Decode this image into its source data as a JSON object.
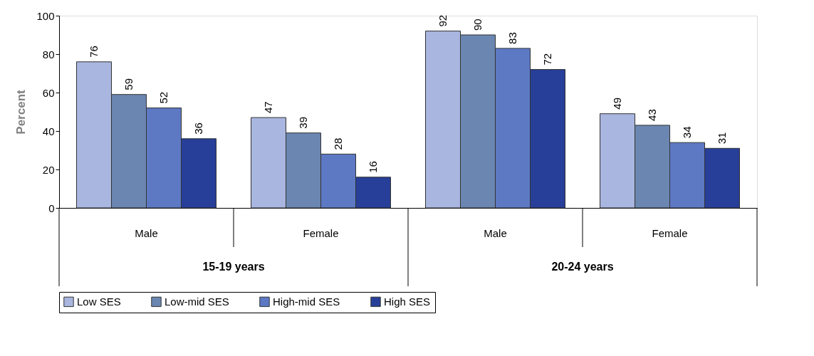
{
  "chart_data": {
    "type": "bar",
    "ylabel": "Percent",
    "categories": [
      "Male",
      "Female",
      "Male",
      "Female"
    ],
    "series": [
      {
        "name": "Low SES",
        "color": "#a9b6df",
        "values": [
          76,
          47,
          92,
          49
        ]
      },
      {
        "name": "Low-mid SES",
        "color": "#6b86b0",
        "values": [
          59,
          39,
          90,
          43
        ]
      },
      {
        "name": "High-mid SES",
        "color": "#5d79c4",
        "values": [
          52,
          28,
          83,
          34
        ]
      },
      {
        "name": "High SES",
        "color": "#273f98",
        "values": [
          36,
          16,
          72,
          31
        ]
      }
    ],
    "ylim": [
      0,
      100
    ],
    "yticks": [
      0,
      20,
      40,
      60,
      80,
      100
    ],
    "data_labels": true,
    "legend": "bottom",
    "grid": false,
    "annotations": [
      "15-19 years",
      "20-24 years"
    ]
  }
}
